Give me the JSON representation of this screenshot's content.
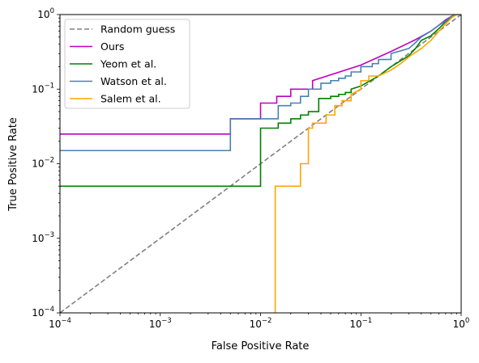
{
  "chart_data": {
    "type": "line",
    "xlabel": "False Positive Rate",
    "ylabel": "True Positive Rate",
    "xscale": "log",
    "yscale": "log",
    "xlim": [
      0.0001,
      1
    ],
    "ylim": [
      0.0001,
      1
    ],
    "x_ticks": [
      {
        "value": 0.0001,
        "base": "10",
        "exp": "−4"
      },
      {
        "value": 0.001,
        "base": "10",
        "exp": "−3"
      },
      {
        "value": 0.01,
        "base": "10",
        "exp": "−2"
      },
      {
        "value": 0.1,
        "base": "10",
        "exp": "−1"
      },
      {
        "value": 1,
        "base": "10",
        "exp": "0"
      }
    ],
    "y_ticks": [
      {
        "value": 0.0001,
        "base": "10",
        "exp": "−4"
      },
      {
        "value": 0.001,
        "base": "10",
        "exp": "−3"
      },
      {
        "value": 0.01,
        "base": "10",
        "exp": "−2"
      },
      {
        "value": 0.1,
        "base": "10",
        "exp": "−1"
      },
      {
        "value": 1,
        "base": "10",
        "exp": "0"
      }
    ],
    "grid": false,
    "legend_position": "top-left",
    "series": [
      {
        "name": "Random guess",
        "color": "#808080",
        "dash": true,
        "points": [
          [
            0.0001,
            0.0001
          ],
          [
            1,
            1
          ]
        ]
      },
      {
        "name": "Ours",
        "color": "#bf00bf",
        "dash": false,
        "points": [
          [
            0.0001,
            0.025
          ],
          [
            0.005,
            0.025
          ],
          [
            0.005,
            0.04
          ],
          [
            0.01,
            0.04
          ],
          [
            0.01,
            0.065
          ],
          [
            0.0145,
            0.065
          ],
          [
            0.0145,
            0.08
          ],
          [
            0.02,
            0.08
          ],
          [
            0.02,
            0.1
          ],
          [
            0.033,
            0.1
          ],
          [
            0.033,
            0.13
          ],
          [
            0.1,
            0.21
          ],
          [
            0.2,
            0.32
          ],
          [
            0.35,
            0.46
          ],
          [
            0.5,
            0.6
          ],
          [
            0.6,
            0.72
          ],
          [
            0.7,
            0.85
          ],
          [
            0.8,
            0.95
          ],
          [
            0.9,
            1.0
          ],
          [
            1,
            1
          ]
        ]
      },
      {
        "name": "Yeom et al.",
        "color": "#008000",
        "dash": false,
        "points": [
          [
            0.0001,
            0.005
          ],
          [
            0.01,
            0.005
          ],
          [
            0.01,
            0.03
          ],
          [
            0.015,
            0.03
          ],
          [
            0.015,
            0.035
          ],
          [
            0.02,
            0.035
          ],
          [
            0.02,
            0.04
          ],
          [
            0.025,
            0.04
          ],
          [
            0.025,
            0.045
          ],
          [
            0.03,
            0.045
          ],
          [
            0.03,
            0.05
          ],
          [
            0.038,
            0.05
          ],
          [
            0.038,
            0.075
          ],
          [
            0.05,
            0.075
          ],
          [
            0.05,
            0.08
          ],
          [
            0.06,
            0.08
          ],
          [
            0.06,
            0.085
          ],
          [
            0.07,
            0.085
          ],
          [
            0.07,
            0.09
          ],
          [
            0.08,
            0.09
          ],
          [
            0.08,
            0.1
          ],
          [
            0.1,
            0.11
          ],
          [
            0.15,
            0.15
          ],
          [
            0.2,
            0.2
          ],
          [
            0.3,
            0.28
          ],
          [
            0.35,
            0.35
          ],
          [
            0.4,
            0.45
          ],
          [
            0.5,
            0.52
          ],
          [
            0.6,
            0.65
          ],
          [
            0.7,
            0.8
          ],
          [
            0.8,
            0.92
          ],
          [
            0.9,
            1.0
          ],
          [
            1,
            1
          ]
        ]
      },
      {
        "name": "Watson et al.",
        "color": "#4682b4",
        "dash": false,
        "points": [
          [
            0.0001,
            0.015
          ],
          [
            0.005,
            0.015
          ],
          [
            0.005,
            0.04
          ],
          [
            0.01,
            0.04
          ],
          [
            0.015,
            0.04
          ],
          [
            0.015,
            0.06
          ],
          [
            0.02,
            0.06
          ],
          [
            0.02,
            0.065
          ],
          [
            0.025,
            0.065
          ],
          [
            0.025,
            0.08
          ],
          [
            0.03,
            0.08
          ],
          [
            0.03,
            0.1
          ],
          [
            0.04,
            0.1
          ],
          [
            0.04,
            0.12
          ],
          [
            0.05,
            0.12
          ],
          [
            0.05,
            0.13
          ],
          [
            0.06,
            0.13
          ],
          [
            0.06,
            0.14
          ],
          [
            0.07,
            0.14
          ],
          [
            0.07,
            0.15
          ],
          [
            0.08,
            0.15
          ],
          [
            0.08,
            0.17
          ],
          [
            0.1,
            0.17
          ],
          [
            0.1,
            0.2
          ],
          [
            0.13,
            0.2
          ],
          [
            0.13,
            0.22
          ],
          [
            0.15,
            0.22
          ],
          [
            0.15,
            0.25
          ],
          [
            0.2,
            0.25
          ],
          [
            0.2,
            0.3
          ],
          [
            0.3,
            0.35
          ],
          [
            0.35,
            0.42
          ],
          [
            0.4,
            0.5
          ],
          [
            0.5,
            0.6
          ],
          [
            0.6,
            0.72
          ],
          [
            0.7,
            0.82
          ],
          [
            0.8,
            0.95
          ],
          [
            0.9,
            1.0
          ],
          [
            1,
            1
          ]
        ]
      },
      {
        "name": "Salem et al.",
        "color": "#ffa500",
        "dash": false,
        "points": [
          [
            0.014,
            0.0001
          ],
          [
            0.014,
            0.005
          ],
          [
            0.025,
            0.005
          ],
          [
            0.025,
            0.01
          ],
          [
            0.03,
            0.01
          ],
          [
            0.03,
            0.03
          ],
          [
            0.033,
            0.03
          ],
          [
            0.033,
            0.035
          ],
          [
            0.045,
            0.035
          ],
          [
            0.045,
            0.045
          ],
          [
            0.055,
            0.045
          ],
          [
            0.055,
            0.06
          ],
          [
            0.065,
            0.06
          ],
          [
            0.065,
            0.07
          ],
          [
            0.08,
            0.07
          ],
          [
            0.08,
            0.085
          ],
          [
            0.1,
            0.1
          ],
          [
            0.1,
            0.13
          ],
          [
            0.12,
            0.13
          ],
          [
            0.12,
            0.15
          ],
          [
            0.15,
            0.15
          ],
          [
            0.2,
            0.18
          ],
          [
            0.25,
            0.22
          ],
          [
            0.3,
            0.27
          ],
          [
            0.4,
            0.35
          ],
          [
            0.5,
            0.45
          ],
          [
            0.6,
            0.6
          ],
          [
            0.7,
            0.75
          ],
          [
            0.8,
            0.9
          ],
          [
            0.9,
            1.0
          ],
          [
            1,
            1
          ]
        ]
      }
    ]
  }
}
